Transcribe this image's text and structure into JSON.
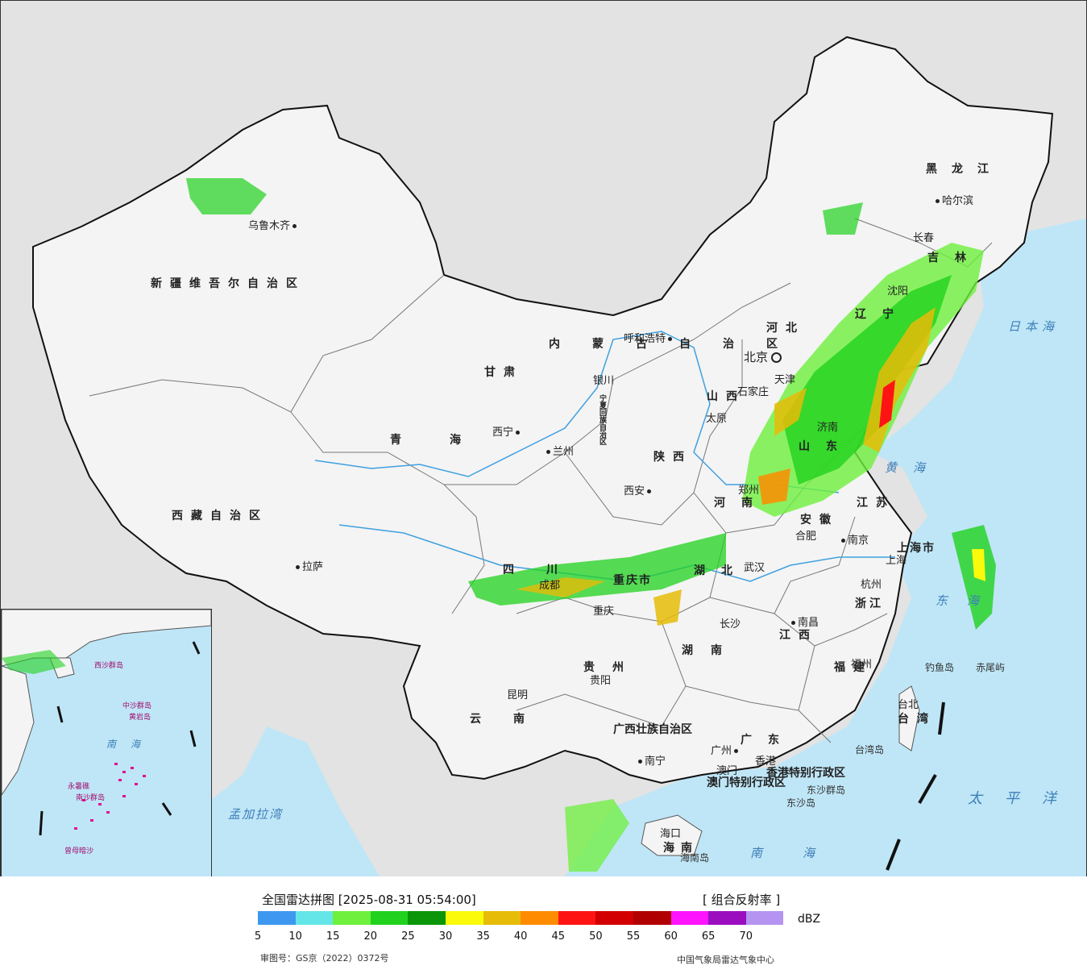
{
  "legend": {
    "title": "全国雷达拼图 [2025-08-31 05:54:00]",
    "product": "[ 组合反射率 ]",
    "unit": "dBZ",
    "approval": "审图号：GS京（2022）0372号",
    "credit": "中国气象局雷达气象中心",
    "scale_colors": [
      "#3e98f0",
      "#64e6e8",
      "#6ef03c",
      "#20d21e",
      "#0a9608",
      "#fafa0a",
      "#e6bc08",
      "#ff8c00",
      "#ff1414",
      "#d20000",
      "#b00000",
      "#ff14ff",
      "#9a0ec0",
      "#b494f0"
    ],
    "scale_ticks": [
      "5",
      "10",
      "15",
      "20",
      "25",
      "30",
      "35",
      "40",
      "45",
      "50",
      "55",
      "60",
      "65",
      "70"
    ]
  },
  "map": {
    "land_color": "#f4f4f4",
    "sea_color": "#bfe6f7",
    "outside_color": "#e3e3e3",
    "provinces": [
      "新疆维吾尔自治区",
      "西藏自治区",
      "青海",
      "甘肃",
      "内蒙古自治区",
      "黑龙江",
      "吉林",
      "辽宁",
      "河北",
      "山西",
      "陕西",
      "四川",
      "云南",
      "贵州",
      "广西壮族自治区",
      "广东",
      "湖南",
      "湖北",
      "河南",
      "山东",
      "江苏",
      "安徽",
      "浙江",
      "江西",
      "福建",
      "台湾",
      "海南",
      "宁夏回族自治区",
      "重庆市",
      "上海市",
      "香港特别行政区",
      "澳门特别行政区"
    ],
    "cities": [
      "乌鲁木齐",
      "拉萨",
      "西宁",
      "兰州",
      "银川",
      "呼和浩特",
      "北京",
      "天津",
      "石家庄",
      "太原",
      "西安",
      "成都",
      "重庆",
      "昆明",
      "贵阳",
      "南宁",
      "广州",
      "香港",
      "澳门",
      "海口",
      "长沙",
      "武汉",
      "郑州",
      "济南",
      "合肥",
      "南京",
      "上海",
      "杭州",
      "南昌",
      "福州",
      "台北",
      "长春",
      "哈尔滨",
      "沈阳"
    ],
    "seas": [
      "日本海",
      "黄海",
      "东海",
      "南海",
      "太平洋",
      "孟加拉湾"
    ],
    "islands": [
      "钓鱼岛",
      "赤尾屿",
      "台湾岛",
      "海南岛",
      "东沙群岛",
      "东沙岛",
      "中沙群岛",
      "黄岩岛",
      "南沙群岛",
      "西沙群岛",
      "永暑礁",
      "曾母暗沙"
    ]
  }
}
